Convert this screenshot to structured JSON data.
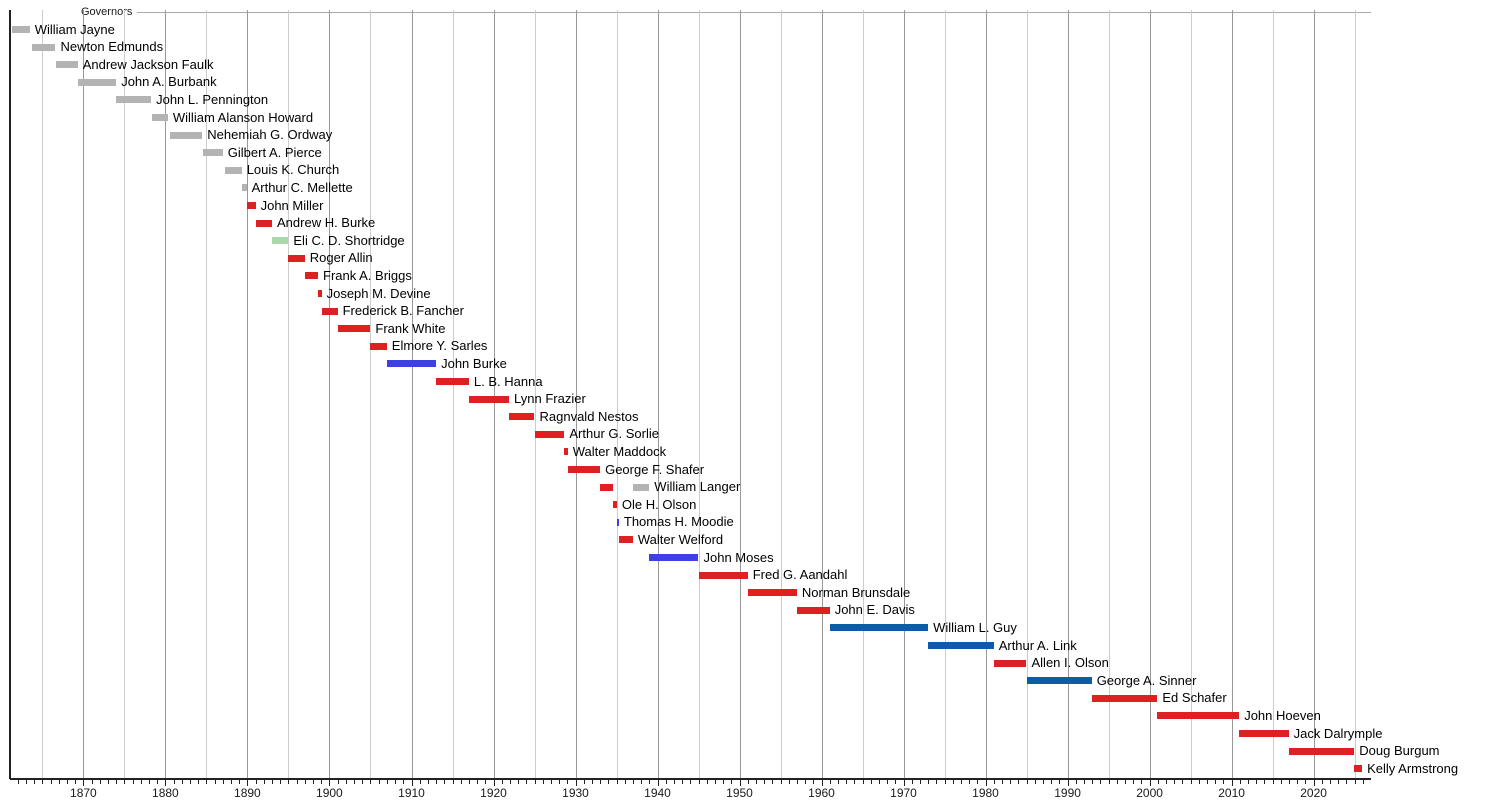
{
  "chart_data": {
    "type": "timeline",
    "title": "Governors",
    "xlim": [
      1861.05,
      2027.0
    ],
    "governors": [
      {
        "name": "William Jayne",
        "terms": [
          {
            "start": 1861.25,
            "end": 1863.45,
            "party": "territorial"
          }
        ]
      },
      {
        "name": "Newton Edmunds",
        "terms": [
          {
            "start": 1863.75,
            "end": 1866.6,
            "party": "territorial"
          }
        ]
      },
      {
        "name": "Andrew Jackson Faulk",
        "terms": [
          {
            "start": 1866.6,
            "end": 1869.3,
            "party": "territorial"
          }
        ]
      },
      {
        "name": "John A. Burbank",
        "terms": [
          {
            "start": 1869.3,
            "end": 1874.0,
            "party": "territorial"
          }
        ]
      },
      {
        "name": "John L. Pennington",
        "terms": [
          {
            "start": 1874.0,
            "end": 1878.25,
            "party": "territorial"
          }
        ]
      },
      {
        "name": "William Alanson Howard",
        "terms": [
          {
            "start": 1878.3,
            "end": 1880.3,
            "party": "territorial"
          }
        ]
      },
      {
        "name": "Nehemiah G. Ordway",
        "terms": [
          {
            "start": 1880.5,
            "end": 1884.5,
            "party": "territorial"
          }
        ]
      },
      {
        "name": "Gilbert A. Pierce",
        "terms": [
          {
            "start": 1884.6,
            "end": 1887.0,
            "party": "territorial"
          }
        ]
      },
      {
        "name": "Louis K. Church",
        "terms": [
          {
            "start": 1887.2,
            "end": 1889.3,
            "party": "territorial"
          }
        ]
      },
      {
        "name": "Arthur C. Mellette",
        "terms": [
          {
            "start": 1889.3,
            "end": 1889.9,
            "party": "territorial"
          }
        ]
      },
      {
        "name": "John Miller",
        "terms": [
          {
            "start": 1889.9,
            "end": 1891.0,
            "party": "republican"
          }
        ]
      },
      {
        "name": "Andrew H. Burke",
        "terms": [
          {
            "start": 1891.0,
            "end": 1893.0,
            "party": "republican"
          }
        ]
      },
      {
        "name": "Eli C. D. Shortridge",
        "terms": [
          {
            "start": 1893.0,
            "end": 1895.0,
            "party": "populist"
          }
        ]
      },
      {
        "name": "Roger Allin",
        "terms": [
          {
            "start": 1895.0,
            "end": 1897.0,
            "party": "republican"
          }
        ]
      },
      {
        "name": "Frank A. Briggs",
        "terms": [
          {
            "start": 1897.0,
            "end": 1898.6,
            "party": "republican"
          }
        ]
      },
      {
        "name": "Joseph M. Devine",
        "terms": [
          {
            "start": 1898.6,
            "end": 1899.05,
            "party": "republican"
          }
        ]
      },
      {
        "name": "Frederick B. Fancher",
        "terms": [
          {
            "start": 1899.05,
            "end": 1901.0,
            "party": "republican"
          }
        ]
      },
      {
        "name": "Frank White",
        "terms": [
          {
            "start": 1901.0,
            "end": 1905.0,
            "party": "republican"
          }
        ]
      },
      {
        "name": "Elmore Y. Sarles",
        "terms": [
          {
            "start": 1905.0,
            "end": 1907.0,
            "party": "republican"
          }
        ]
      },
      {
        "name": "John Burke",
        "terms": [
          {
            "start": 1907.0,
            "end": 1913.0,
            "party": "democratic"
          }
        ]
      },
      {
        "name": "L. B. Hanna",
        "terms": [
          {
            "start": 1913.0,
            "end": 1917.0,
            "party": "republican"
          }
        ]
      },
      {
        "name": "Lynn Frazier",
        "terms": [
          {
            "start": 1917.0,
            "end": 1921.9,
            "party": "republican"
          }
        ]
      },
      {
        "name": "Ragnvald Nestos",
        "terms": [
          {
            "start": 1921.9,
            "end": 1925.0,
            "party": "republican"
          }
        ]
      },
      {
        "name": "Arthur G. Sorlie",
        "terms": [
          {
            "start": 1925.0,
            "end": 1928.65,
            "party": "republican"
          }
        ]
      },
      {
        "name": "Walter Maddock",
        "terms": [
          {
            "start": 1928.65,
            "end": 1929.05,
            "party": "republican"
          }
        ]
      },
      {
        "name": "George F. Shafer",
        "terms": [
          {
            "start": 1929.05,
            "end": 1933.0,
            "party": "republican"
          }
        ]
      },
      {
        "name": "William Langer",
        "terms": [
          {
            "start": 1933.0,
            "end": 1934.6,
            "party": "republican"
          },
          {
            "start": 1937.0,
            "end": 1939.0,
            "party": "independent"
          }
        ]
      },
      {
        "name": "Ole H. Olson",
        "terms": [
          {
            "start": 1934.6,
            "end": 1935.05,
            "party": "republican"
          }
        ]
      },
      {
        "name": "Thomas H. Moodie",
        "terms": [
          {
            "start": 1935.05,
            "end": 1935.3,
            "party": "democratic"
          }
        ]
      },
      {
        "name": "Walter Welford",
        "terms": [
          {
            "start": 1935.3,
            "end": 1937.0,
            "party": "republican"
          }
        ]
      },
      {
        "name": "John Moses",
        "terms": [
          {
            "start": 1939.0,
            "end": 1945.0,
            "party": "democratic"
          }
        ]
      },
      {
        "name": "Fred G. Aandahl",
        "terms": [
          {
            "start": 1945.0,
            "end": 1951.0,
            "party": "republican"
          }
        ]
      },
      {
        "name": "Norman Brunsdale",
        "terms": [
          {
            "start": 1951.0,
            "end": 1957.0,
            "party": "republican"
          }
        ]
      },
      {
        "name": "John E. Davis",
        "terms": [
          {
            "start": 1957.0,
            "end": 1961.0,
            "party": "republican"
          }
        ]
      },
      {
        "name": "William L. Guy",
        "terms": [
          {
            "start": 1961.0,
            "end": 1973.0,
            "party": "democratic_npl"
          }
        ]
      },
      {
        "name": "Arthur A. Link",
        "terms": [
          {
            "start": 1973.0,
            "end": 1981.0,
            "party": "democratic_npl"
          }
        ]
      },
      {
        "name": "Allen I. Olson",
        "terms": [
          {
            "start": 1981.0,
            "end": 1985.0,
            "party": "republican"
          }
        ]
      },
      {
        "name": "George A. Sinner",
        "terms": [
          {
            "start": 1985.0,
            "end": 1992.95,
            "party": "democratic_npl"
          }
        ]
      },
      {
        "name": "Ed Schafer",
        "terms": [
          {
            "start": 1992.95,
            "end": 2000.95,
            "party": "republican"
          }
        ]
      },
      {
        "name": "John Hoeven",
        "terms": [
          {
            "start": 2000.95,
            "end": 2010.93,
            "party": "republican"
          }
        ]
      },
      {
        "name": "Jack Dalrymple",
        "terms": [
          {
            "start": 2010.93,
            "end": 2016.95,
            "party": "republican"
          }
        ]
      },
      {
        "name": "Doug Burgum",
        "terms": [
          {
            "start": 2016.95,
            "end": 2024.96,
            "party": "republican"
          }
        ]
      },
      {
        "name": "Kelly Armstrong",
        "terms": [
          {
            "start": 2024.96,
            "end": 2025.92,
            "party": "republican"
          }
        ]
      }
    ]
  },
  "axis": {
    "min_year": 1861.05,
    "max_year": 2027.0,
    "decade_labels": [
      1870,
      1880,
      1890,
      1900,
      1910,
      1920,
      1930,
      1940,
      1950,
      1960,
      1970,
      1980,
      1990,
      2000,
      2010,
      2020
    ],
    "gridline_interval_years": 5,
    "minor_tick_interval_years": 1
  },
  "party_colors": {
    "territorial": "#b3b3b3",
    "republican": "#de2020",
    "democratic": "#3f3fe6",
    "democratic_npl": "#0d5ca8",
    "populist": "#a8d9a8",
    "independent": "#b3b3b3"
  },
  "style_colors": {
    "decade_gridline": "#999999",
    "minor_gridline": "#cccccc",
    "axis": "#222222",
    "title_rule": "#aaaaaa"
  }
}
